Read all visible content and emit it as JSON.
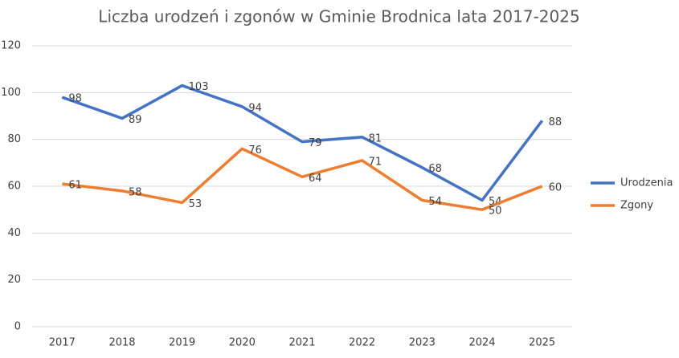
{
  "chart_data": {
    "type": "line",
    "title": "Liczba urodzeń i zgonów w Gminie Brodnica lata 2017-2025",
    "categories": [
      "2017",
      "2018",
      "2019",
      "2020",
      "2021",
      "2022",
      "2023",
      "2024",
      "2025"
    ],
    "series": [
      {
        "name": "Urodzenia",
        "color": "#4472c4",
        "values": [
          98,
          89,
          103,
          94,
          79,
          81,
          68,
          54,
          88
        ]
      },
      {
        "name": "Zgony",
        "color": "#ed7d31",
        "values": [
          61,
          58,
          53,
          76,
          64,
          71,
          54,
          50,
          60
        ]
      }
    ],
    "ylim": [
      0,
      120
    ],
    "yticks": [
      0,
      20,
      40,
      60,
      80,
      100,
      120
    ],
    "grid": true,
    "legend": "right"
  }
}
